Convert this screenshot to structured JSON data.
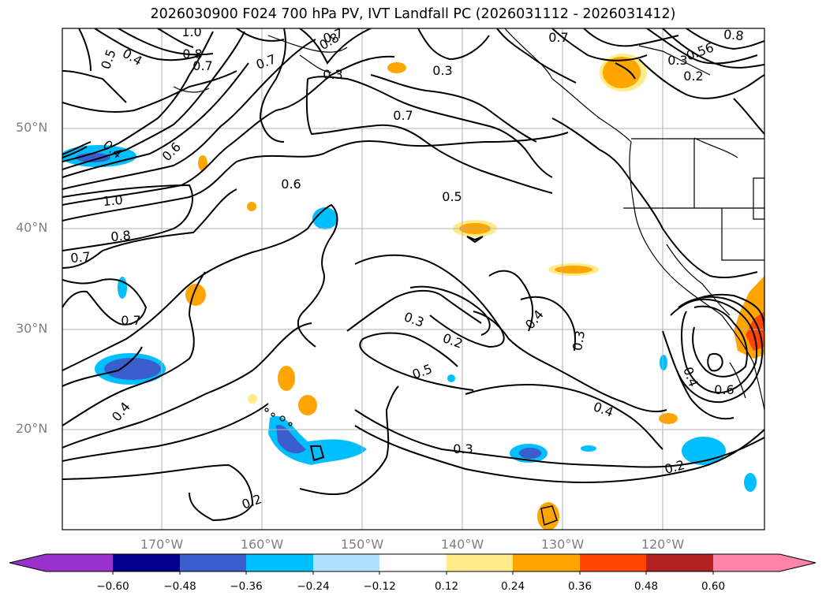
{
  "title": "2026030900 F024 700 hPa PV, IVT Landfall PC (2026031112 - 2026031412)",
  "map": {
    "extent": {
      "lon_min": -180,
      "lon_max": -110,
      "lat_min": 10,
      "lat_max": 60
    },
    "lat_ticks": [
      {
        "value": 20,
        "label": "20°N"
      },
      {
        "value": 30,
        "label": "30°N"
      },
      {
        "value": 40,
        "label": "40°N"
      },
      {
        "value": 50,
        "label": "50°N"
      }
    ],
    "lon_ticks": [
      {
        "value": -170,
        "label": "170°W"
      },
      {
        "value": -160,
        "label": "160°W"
      },
      {
        "value": -150,
        "label": "150°W"
      },
      {
        "value": -140,
        "label": "140°W"
      },
      {
        "value": -130,
        "label": "130°W"
      },
      {
        "value": -120,
        "label": "120°W"
      }
    ],
    "grid": true,
    "contour_labels": [
      "1.0",
      "0.8",
      "0.7",
      "0.5",
      "0.4",
      "0.6",
      "0.7",
      "0.3",
      "0.7",
      "0.6",
      "0.5",
      "0.8",
      "0.7",
      "0.4",
      "0.3",
      "1.0",
      "0.8",
      "0.7",
      "0.7",
      "0.3",
      "0.2",
      "0.4",
      "0.3",
      "0.5",
      "0.4",
      "0.4",
      "0.3",
      "0.2",
      "0.4",
      "0.6",
      "0.2",
      "0.8",
      "0.7",
      "0.56",
      "0.3",
      "0.2"
    ]
  },
  "colorbar": {
    "ticks": [
      "−0.60",
      "−0.48",
      "−0.36",
      "−0.24",
      "−0.12",
      "0.12",
      "0.24",
      "0.36",
      "0.48",
      "0.60"
    ],
    "colors": [
      "#9932cc",
      "#00008b",
      "#3a5fcd",
      "#00bfff",
      "#b0e2ff",
      "#ffffff",
      "#ffeb8a",
      "#ffa500",
      "#ff4500",
      "#b22222",
      "#ff85a8"
    ]
  }
}
